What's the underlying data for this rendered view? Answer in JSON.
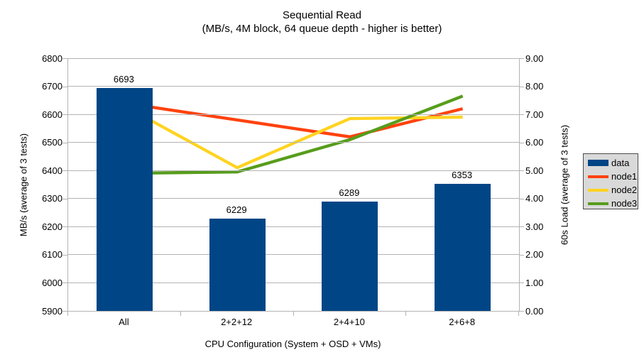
{
  "chart_data": {
    "type": "combo-bar-line",
    "title": "Sequential Read",
    "subtitle": "(MB/s, 4M block, 64 queue depth - higher is better)",
    "categories": [
      "All",
      "2+2+12",
      "2+4+10",
      "2+6+8"
    ],
    "bar_series": {
      "name": "data",
      "axis": "left",
      "color": "#004586",
      "values": [
        6693,
        6229,
        6289,
        6353
      ]
    },
    "line_series": [
      {
        "name": "node1",
        "axis": "right",
        "color": "#FF420E",
        "values": [
          7.4,
          6.8,
          6.2,
          7.2
        ]
      },
      {
        "name": "node2",
        "axis": "right",
        "color": "#FFD320",
        "values": [
          7.3,
          5.1,
          6.85,
          6.9
        ]
      },
      {
        "name": "node3",
        "axis": "right",
        "color": "#579D1C",
        "values": [
          4.9,
          4.95,
          6.1,
          7.65
        ]
      }
    ],
    "left_axis": {
      "title": "MB/s (average of 3 tests)",
      "min": 5900,
      "max": 6800,
      "step": 100
    },
    "right_axis": {
      "title": "60s Load (average of 3 tests)",
      "min": 0,
      "max": 9,
      "step": 1,
      "decimals": 2
    },
    "x_axis": {
      "title": "CPU Configuration (System + OSD + VMs)"
    },
    "legend": {
      "items": [
        "data",
        "node1",
        "node2",
        "node3"
      ],
      "background": "#d9d9d9",
      "border": "#4d4d4d"
    },
    "grid_color": "#b3b3b3",
    "text_color": "#000000",
    "background": "#ffffff"
  }
}
